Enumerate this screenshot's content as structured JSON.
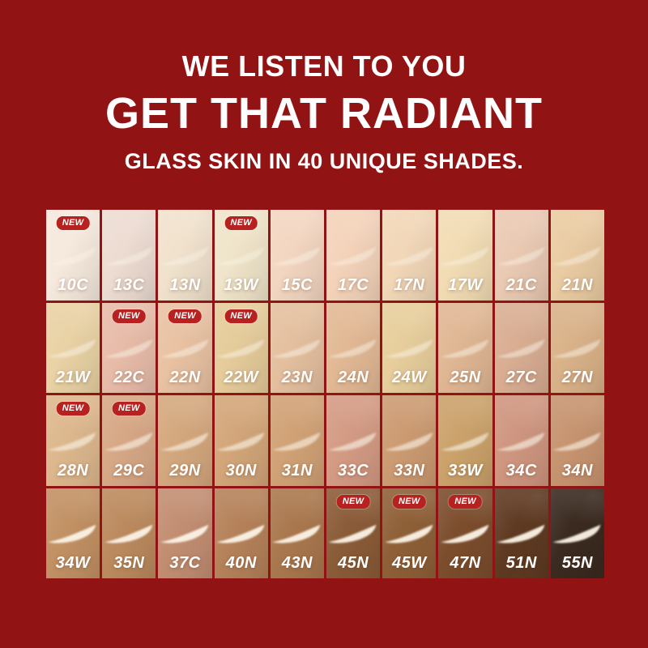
{
  "page": {
    "background_color": "#921313"
  },
  "header": {
    "line1": "WE LISTEN TO YOU",
    "line2": "GET THAT RADIANT",
    "line3": "GLASS SKIN IN 40 UNIQUE SHADES.",
    "text_color": "#FFFFFF"
  },
  "shade_grid": {
    "total_shades": 40,
    "new_badge_label": "NEW",
    "badge_color": "#B7211F",
    "streak_color": "#FBF4E7",
    "rows": [
      {
        "shades": [
          {
            "code": "10C",
            "color": "#F6E9DD",
            "is_new": true
          },
          {
            "code": "13C",
            "color": "#EDDCD2",
            "is_new": false
          },
          {
            "code": "13N",
            "color": "#F1E2CD",
            "is_new": false
          },
          {
            "code": "13W",
            "color": "#F0E5CA",
            "is_new": true
          },
          {
            "code": "15C",
            "color": "#F3D6C1",
            "is_new": false
          },
          {
            "code": "17C",
            "color": "#F4D3BA",
            "is_new": false
          },
          {
            "code": "17N",
            "color": "#F2D7B8",
            "is_new": false
          },
          {
            "code": "17W",
            "color": "#F2DCB4",
            "is_new": false
          },
          {
            "code": "21C",
            "color": "#EACAB3",
            "is_new": false
          },
          {
            "code": "21N",
            "color": "#EACCA3",
            "is_new": false
          }
        ]
      },
      {
        "shades": [
          {
            "code": "21W",
            "color": "#E9D2A5",
            "is_new": false
          },
          {
            "code": "22C",
            "color": "#E8BCA9",
            "is_new": true
          },
          {
            "code": "22N",
            "color": "#E9C2A3",
            "is_new": true
          },
          {
            "code": "22W",
            "color": "#E6CC9B",
            "is_new": true
          },
          {
            "code": "23N",
            "color": "#E4C09F",
            "is_new": false
          },
          {
            "code": "24N",
            "color": "#E2B995",
            "is_new": false
          },
          {
            "code": "24W",
            "color": "#E7CE9C",
            "is_new": false
          },
          {
            "code": "25N",
            "color": "#E0B794",
            "is_new": false
          },
          {
            "code": "27C",
            "color": "#D9AE93",
            "is_new": false
          },
          {
            "code": "27N",
            "color": "#D9B289",
            "is_new": false
          }
        ]
      },
      {
        "shades": [
          {
            "code": "28N",
            "color": "#DDB88E",
            "is_new": true
          },
          {
            "code": "29C",
            "color": "#D7A886",
            "is_new": true
          },
          {
            "code": "29N",
            "color": "#D4A87E",
            "is_new": false
          },
          {
            "code": "30N",
            "color": "#D3A67A",
            "is_new": false
          },
          {
            "code": "31N",
            "color": "#D1A276",
            "is_new": false
          },
          {
            "code": "33C",
            "color": "#D49B84",
            "is_new": false
          },
          {
            "code": "33N",
            "color": "#CC9B72",
            "is_new": false
          },
          {
            "code": "33W",
            "color": "#CBA26B",
            "is_new": false
          },
          {
            "code": "34C",
            "color": "#CF9680",
            "is_new": false
          },
          {
            "code": "34N",
            "color": "#C79470",
            "is_new": false
          }
        ]
      },
      {
        "shades": [
          {
            "code": "34W",
            "color": "#C29164",
            "is_new": false
          },
          {
            "code": "35N",
            "color": "#BC8A5E",
            "is_new": false
          },
          {
            "code": "37C",
            "color": "#C28E72",
            "is_new": false
          },
          {
            "code": "40N",
            "color": "#B5825A",
            "is_new": false
          },
          {
            "code": "43N",
            "color": "#AA784E",
            "is_new": false
          },
          {
            "code": "45N",
            "color": "#8B5C38",
            "is_new": true
          },
          {
            "code": "45W",
            "color": "#8F6038",
            "is_new": true
          },
          {
            "code": "47N",
            "color": "#7C4D2D",
            "is_new": true
          },
          {
            "code": "51N",
            "color": "#5F3A22",
            "is_new": false
          },
          {
            "code": "55N",
            "color": "#3A2A20",
            "is_new": false
          }
        ]
      }
    ]
  }
}
